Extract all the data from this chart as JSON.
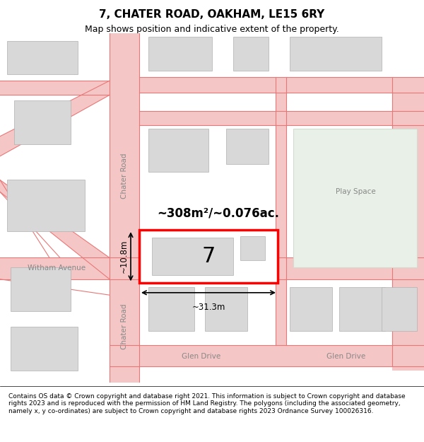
{
  "title": "7, CHATER ROAD, OAKHAM, LE15 6RY",
  "subtitle": "Map shows position and indicative extent of the property.",
  "footer": "Contains OS data © Crown copyright and database right 2021. This information is subject to Crown copyright and database rights 2023 and is reproduced with the permission of HM Land Registry. The polygons (including the associated geometry, namely x, y co-ordinates) are subject to Crown copyright and database rights 2023 Ordnance Survey 100026316.",
  "map_bg": "#ffffff",
  "road_color": "#f5c6c6",
  "road_line_color": "#e87878",
  "building_fill": "#d8d8d8",
  "building_edge": "#cccccc",
  "green_fill": "#e8f0e8",
  "green_edge": "#d0ddd0",
  "highlight_fill": "#ffffff",
  "highlight_edge": "#ff0000",
  "highlight_lw": 2.5,
  "area_text": "~308m²/~0.076ac.",
  "width_text": "~31.3m",
  "height_text": "~10.8m",
  "number_text": "7",
  "road_label_chater_v": "Chater Road",
  "road_label_chater_h": "Chater Road",
  "road_label_witham": "Witham Avenue",
  "road_label_glen1": "Glen Drive",
  "road_label_glen2": "Glen Drive",
  "road_label_play": "Play Space",
  "title_fontsize": 11,
  "subtitle_fontsize": 9,
  "footer_fontsize": 6.5,
  "map_label_fontsize": 8
}
